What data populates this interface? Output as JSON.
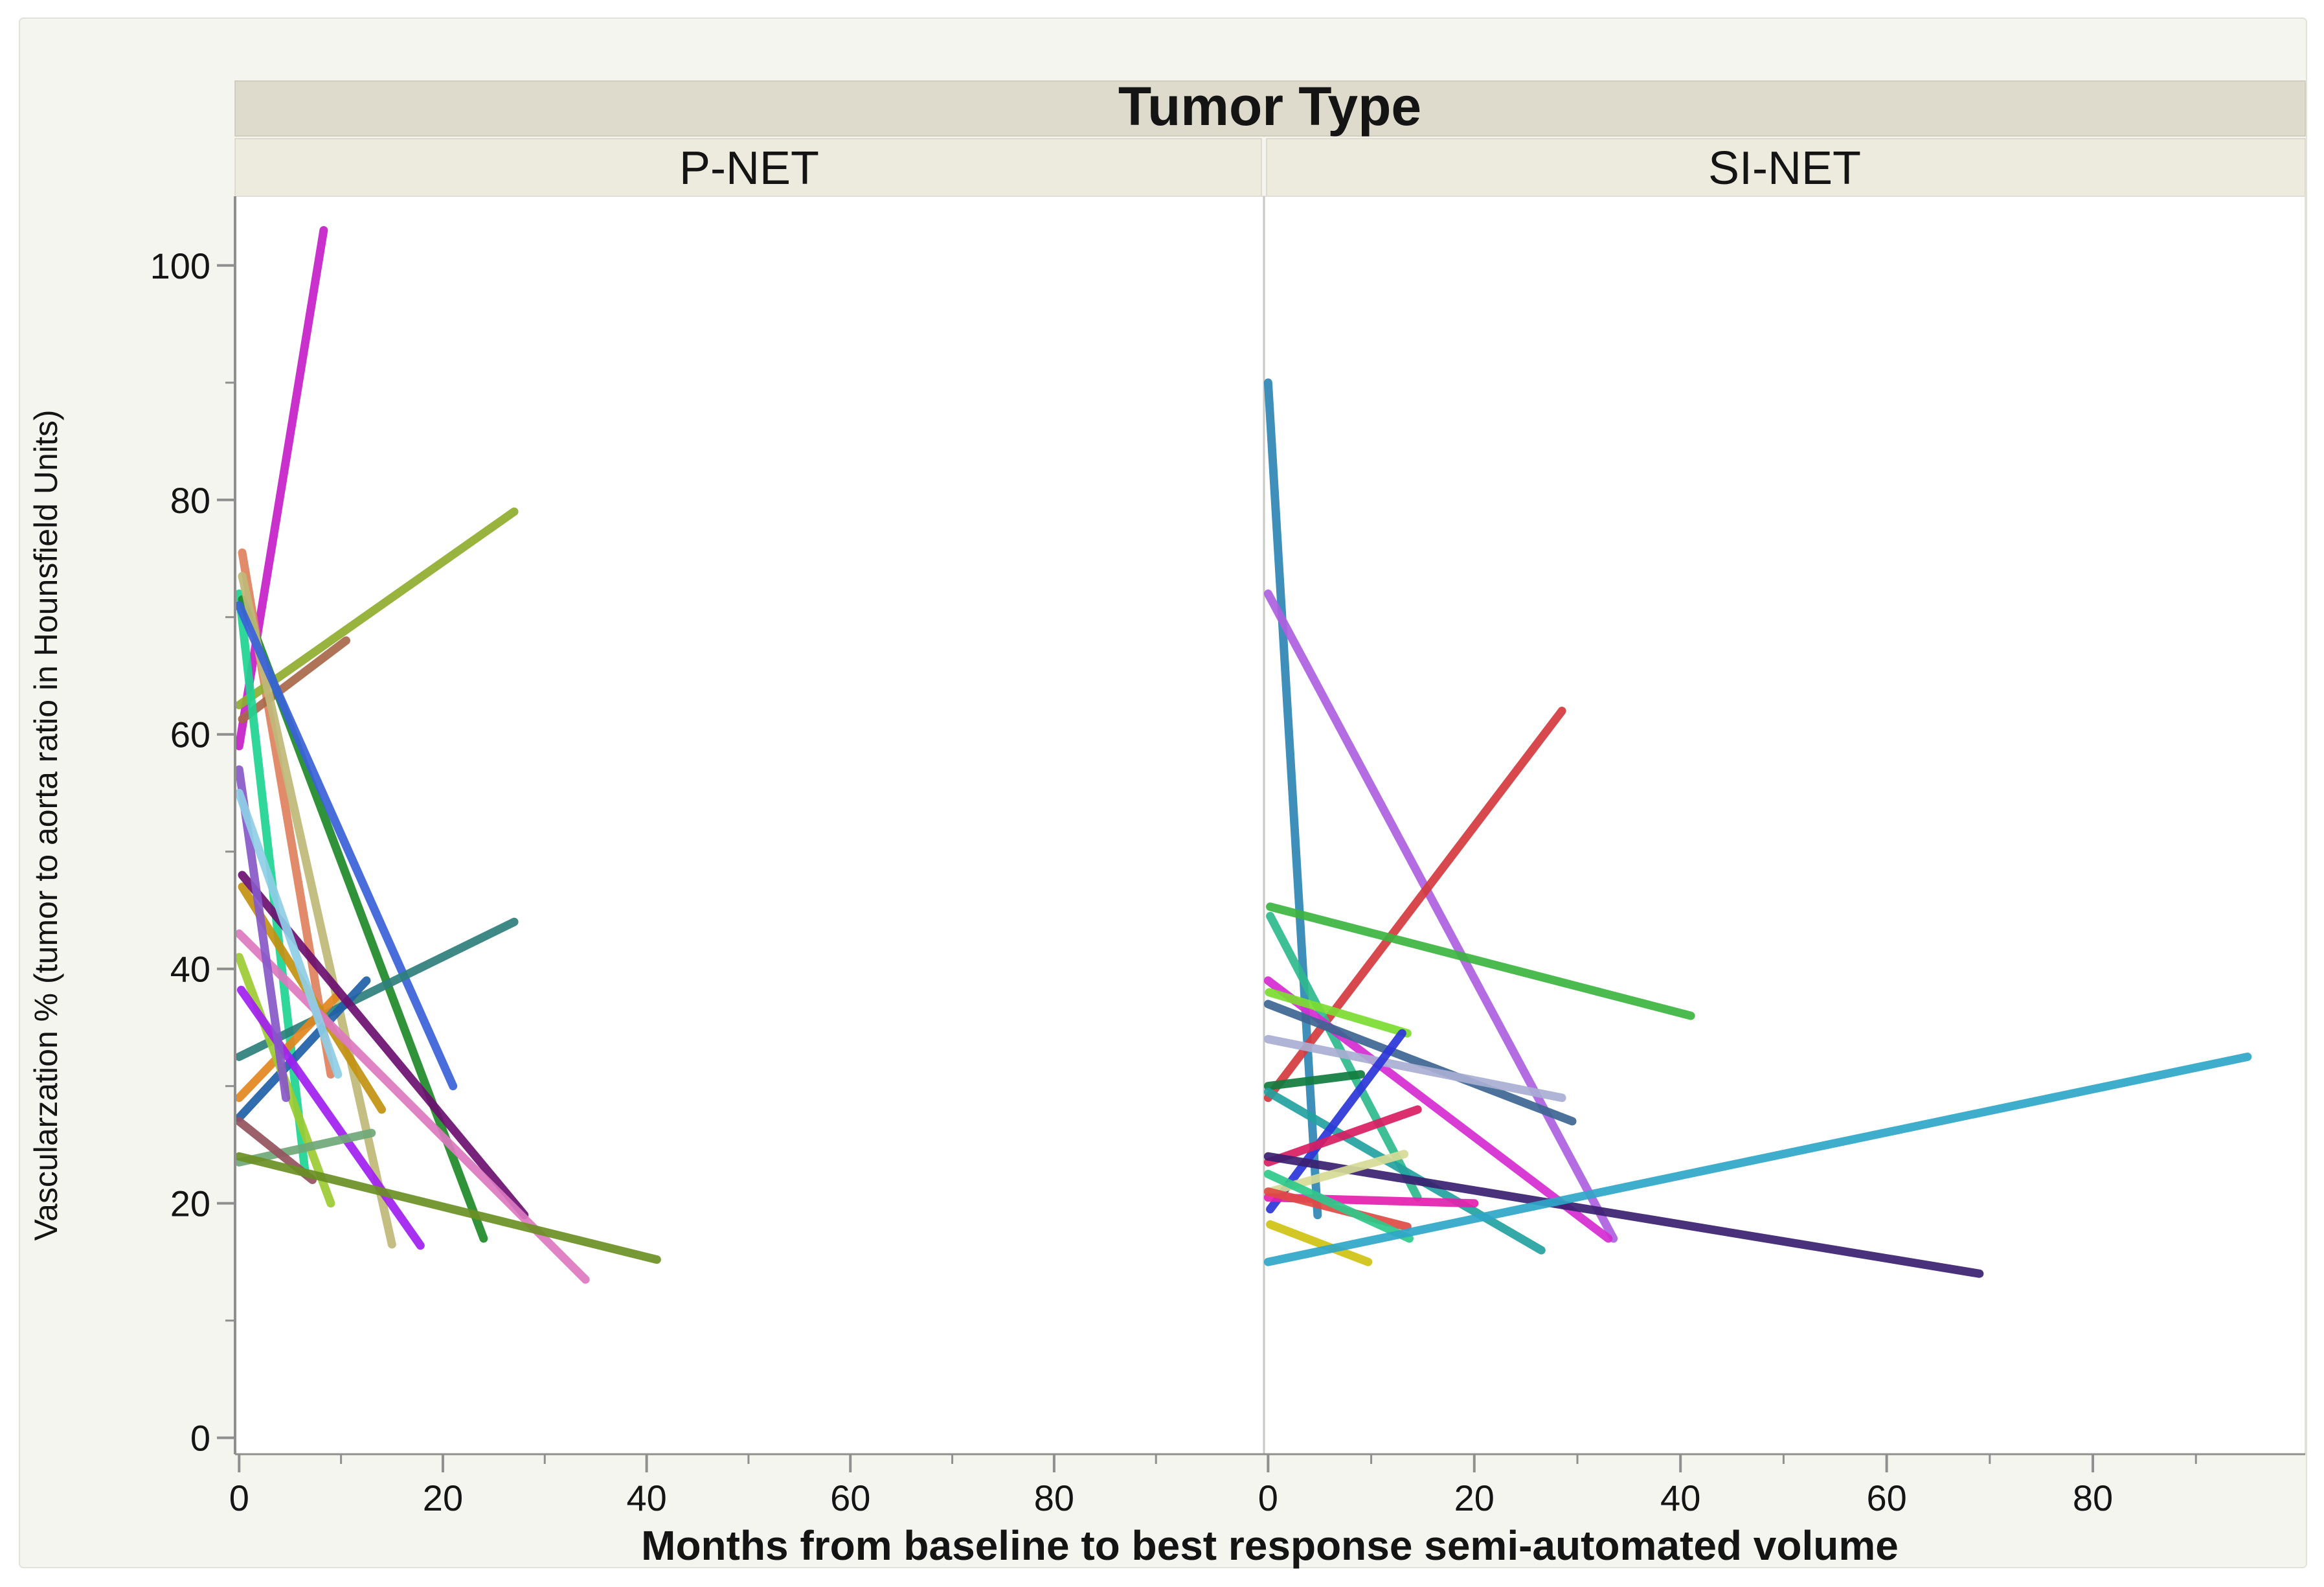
{
  "figure": {
    "colors": {
      "page_bg": "#ffffff",
      "figure_bg": "#f5f5ef",
      "figure_border": "#e2e2da",
      "header_band": "#dedbcc",
      "panel_band": "#edebde",
      "band_border": "#cac7b7",
      "plot_bg": "#ffffff",
      "plot_border": "#e0e0d8",
      "panel_divider": "#c9c9c3",
      "axis": "#8f8f8f",
      "tick": "#8f8f8f",
      "text": "#141414"
    }
  },
  "chart_data": {
    "type": "line",
    "title": "Tumor Type",
    "xlabel": "Months from baseline to best response semi-automated volume",
    "ylabel": "Vascularzation % (tumor to aorta ratio in Hounsfield Units)",
    "xlim": [
      -0.4,
      100.6
    ],
    "ylim": [
      -1.4,
      105.9
    ],
    "x_major_ticks": [
      0,
      20,
      40,
      60,
      80
    ],
    "x_minor_ticks": [
      10,
      30,
      50,
      70,
      90
    ],
    "y_major_ticks": [
      0,
      20,
      40,
      60,
      80,
      100
    ],
    "y_minor_ticks": [
      10,
      30,
      50,
      70,
      90
    ],
    "grid": false,
    "legend": false,
    "facet_variable": "Tumor Type",
    "panels": [
      {
        "name": "P-NET",
        "series": [
          {
            "color": "#c620c8",
            "points": [
              [
                0,
                59
              ],
              [
                8.3,
                103
              ]
            ]
          },
          {
            "color": "#e0815e",
            "points": [
              [
                0.3,
                75.5
              ],
              [
                9,
                31
              ]
            ]
          },
          {
            "color": "#8fae2e",
            "points": [
              [
                0,
                62.5
              ],
              [
                27,
                79
              ]
            ]
          },
          {
            "color": "#a8684a",
            "points": [
              [
                0.3,
                61.3
              ],
              [
                10.5,
                68
              ]
            ]
          },
          {
            "color": "#1ed493",
            "points": [
              [
                0,
                72
              ],
              [
                6.5,
                22.5
              ]
            ]
          },
          {
            "color": "#1f8a28",
            "points": [
              [
                0.3,
                71.5
              ],
              [
                24,
                17
              ]
            ]
          },
          {
            "color": "#bfb878",
            "points": [
              [
                0.3,
                73.5
              ],
              [
                15,
                16.5
              ]
            ]
          },
          {
            "color": "#3a62d9",
            "points": [
              [
                0,
                71
              ],
              [
                21,
                30
              ]
            ]
          },
          {
            "color": "#2e7f7c",
            "points": [
              [
                0,
                32.5
              ],
              [
                27,
                44
              ]
            ]
          },
          {
            "color": "#205fa8",
            "points": [
              [
                0,
                27.3
              ],
              [
                12.5,
                39
              ]
            ]
          },
          {
            "color": "#e2861e",
            "points": [
              [
                0,
                29
              ],
              [
                9.5,
                37.6
              ]
            ]
          },
          {
            "color": "#c29110",
            "points": [
              [
                0.3,
                47
              ],
              [
                14,
                28
              ]
            ]
          },
          {
            "color": "#6b0f70",
            "points": [
              [
                0.3,
                48
              ],
              [
                28,
                19
              ]
            ]
          },
          {
            "color": "#dc78c0",
            "points": [
              [
                0,
                43
              ],
              [
                34,
                13.5
              ]
            ]
          },
          {
            "color": "#9ccb32",
            "points": [
              [
                0,
                41
              ],
              [
                9,
                20
              ]
            ]
          },
          {
            "color": "#a11ef0",
            "points": [
              [
                0.2,
                38.2
              ],
              [
                17.8,
                16.4
              ]
            ]
          },
          {
            "color": "#8758c8",
            "points": [
              [
                0,
                57
              ],
              [
                4.6,
                29
              ]
            ]
          },
          {
            "color": "#8fcee6",
            "points": [
              [
                0,
                55
              ],
              [
                9.7,
                31
              ]
            ]
          },
          {
            "color": "#6fa878",
            "points": [
              [
                0,
                23.5
              ],
              [
                13,
                26
              ]
            ]
          },
          {
            "color": "#94525e",
            "points": [
              [
                0,
                27
              ],
              [
                7.2,
                22
              ]
            ]
          },
          {
            "color": "#6a8f24",
            "points": [
              [
                0,
                24
              ],
              [
                41,
                15.2
              ]
            ]
          }
        ]
      },
      {
        "name": "SI-NET",
        "series": [
          {
            "color": "#2e86b4",
            "points": [
              [
                0,
                90
              ],
              [
                4.8,
                19
              ]
            ]
          },
          {
            "color": "#ae5fe0",
            "points": [
              [
                0,
                72
              ],
              [
                33.5,
                17
              ]
            ]
          },
          {
            "color": "#d4393e",
            "points": [
              [
                0,
                29
              ],
              [
                28.5,
                62
              ]
            ]
          },
          {
            "color": "#3cb440",
            "points": [
              [
                0.2,
                45.3
              ],
              [
                41,
                36
              ]
            ]
          },
          {
            "color": "#2eba8c",
            "points": [
              [
                0.2,
                44.5
              ],
              [
                14.5,
                20.5
              ]
            ]
          },
          {
            "color": "#d62bd0",
            "points": [
              [
                0,
                39
              ],
              [
                33,
                17
              ]
            ]
          },
          {
            "color": "#7cdc30",
            "points": [
              [
                0.1,
                38
              ],
              [
                13.5,
                34.5
              ]
            ]
          },
          {
            "color": "#3d6593",
            "points": [
              [
                0,
                37
              ],
              [
                29.5,
                27
              ]
            ]
          },
          {
            "color": "#a9aed2",
            "points": [
              [
                0,
                34
              ],
              [
                28.5,
                29
              ]
            ]
          },
          {
            "color": "#107c3e",
            "points": [
              [
                0,
                30
              ],
              [
                9,
                31
              ]
            ]
          },
          {
            "color": "#23a2a0",
            "points": [
              [
                0,
                29.5
              ],
              [
                26.5,
                16
              ]
            ]
          },
          {
            "color": "#2b35d8",
            "points": [
              [
                0.2,
                19.5
              ],
              [
                13,
                34.5
              ]
            ]
          },
          {
            "color": "#d81d62",
            "points": [
              [
                0,
                23.5
              ],
              [
                14.5,
                28
              ]
            ]
          },
          {
            "color": "#392070",
            "points": [
              [
                0,
                24
              ],
              [
                69,
                14
              ]
            ]
          },
          {
            "color": "#d6db96",
            "points": [
              [
                0.2,
                21
              ],
              [
                13.2,
                24.2
              ]
            ]
          },
          {
            "color": "#e520ae",
            "points": [
              [
                0,
                20.5
              ],
              [
                20,
                20
              ]
            ]
          },
          {
            "color": "#df4a44",
            "points": [
              [
                0,
                21
              ],
              [
                13.5,
                18
              ]
            ]
          },
          {
            "color": "#2ec98a",
            "points": [
              [
                0,
                22.5
              ],
              [
                13.7,
                17
              ]
            ]
          },
          {
            "color": "#cfc212",
            "points": [
              [
                0.2,
                18.2
              ],
              [
                9.7,
                15
              ]
            ]
          },
          {
            "color": "#2fa6c8",
            "points": [
              [
                0,
                15
              ],
              [
                95,
                32.5
              ]
            ]
          }
        ]
      }
    ]
  }
}
